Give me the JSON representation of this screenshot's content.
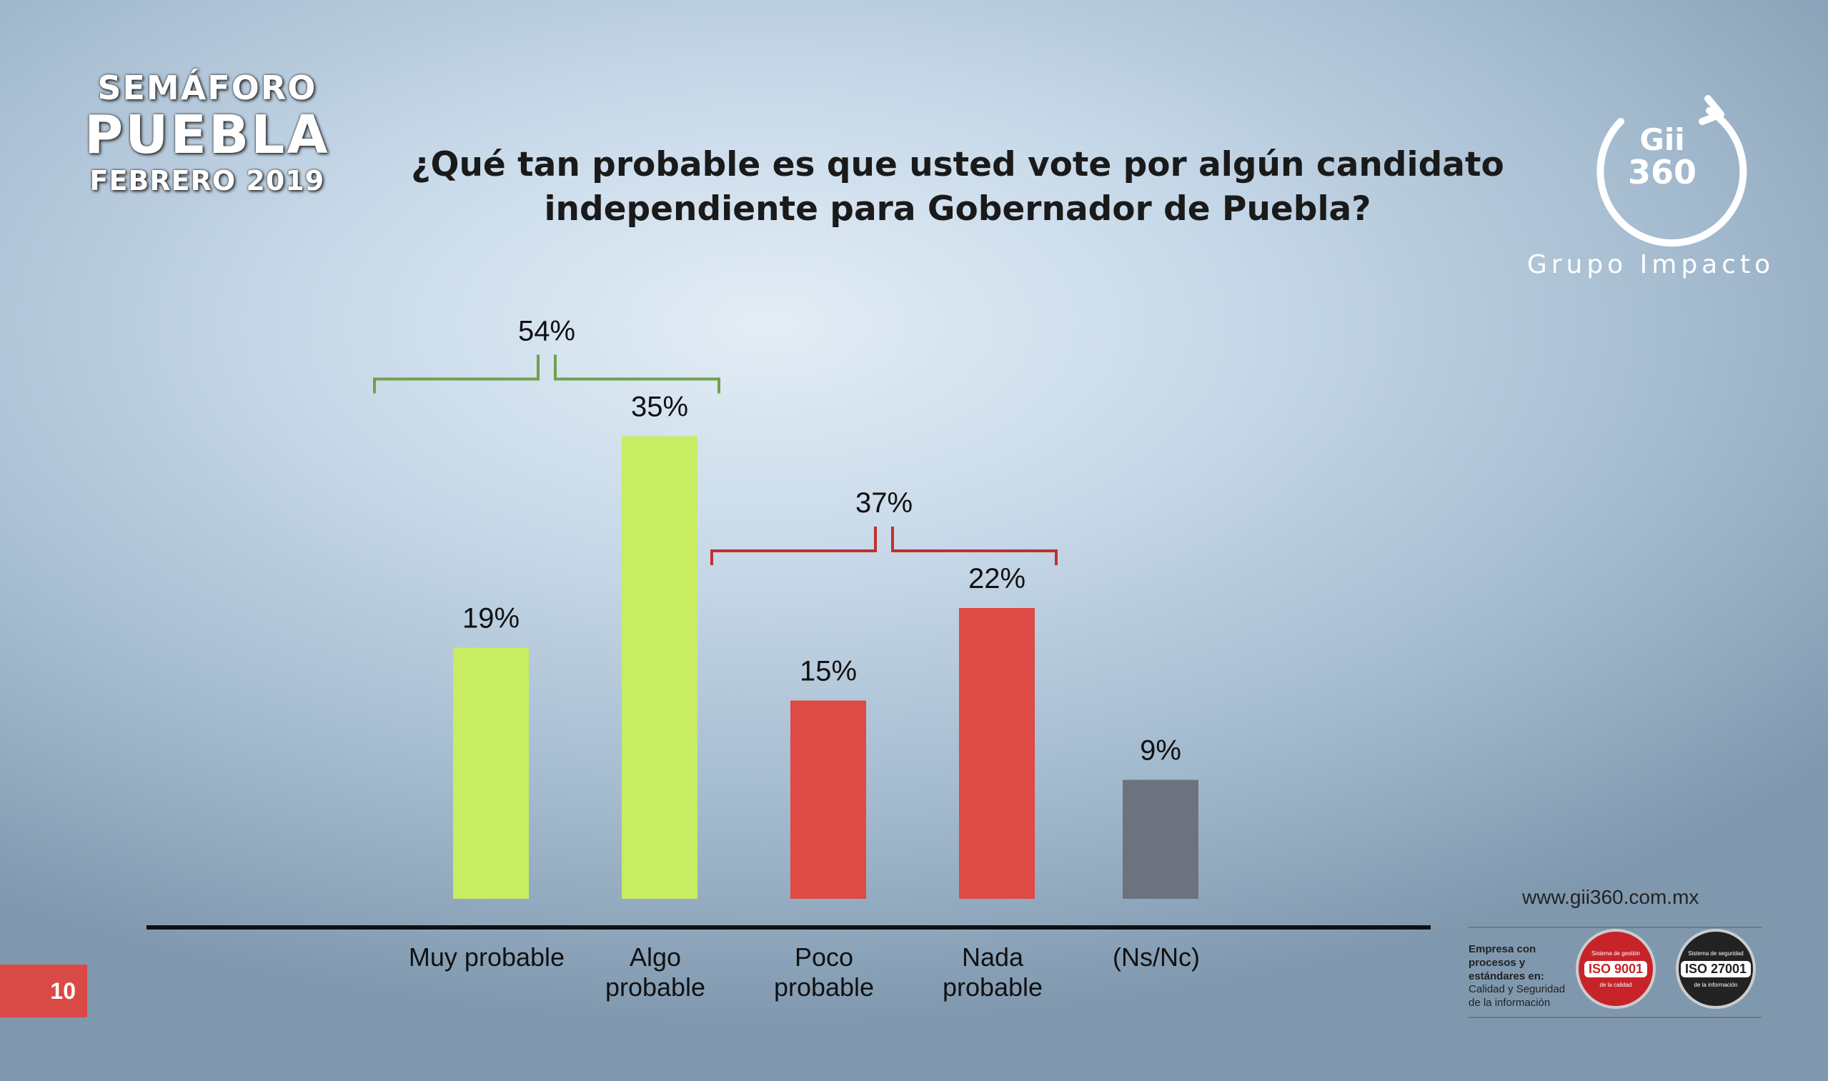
{
  "brand": {
    "line1": "SEMÁFORO",
    "line2": "PUEBLA",
    "line3": "FEBRERO 2019"
  },
  "logo": {
    "mark_top": "Gii",
    "mark_bottom": "360",
    "tagline": "Grupo Impacto"
  },
  "page_number": "10",
  "footer": {
    "url": "www.gii360.com.mx",
    "cert_bold": "Empresa con procesos y estándares en:",
    "cert_normal": "Calidad y Seguridad de la información",
    "iso1": {
      "badge": "ISO 9001",
      "ring_top": "Sistema de gestión",
      "ring_bottom": "de la calidad"
    },
    "iso2": {
      "badge": "ISO 27001",
      "ring_top": "Sistema de seguridad",
      "ring_bottom": "de la información"
    }
  },
  "colors": {
    "green": "#c8ec62",
    "red": "#de4a44",
    "gray": "#6c737e",
    "green_bracket": "#6fa14a",
    "red_bracket": "#c2302c"
  },
  "chart_data": {
    "type": "bar",
    "title": "¿Qué tan probable es que usted vote por algún candidato independiente para Gobernador de Puebla?",
    "categories": [
      [
        "Muy probable"
      ],
      [
        "Algo",
        "probable"
      ],
      [
        "Poco",
        "probable"
      ],
      [
        "Nada",
        "probable"
      ],
      [
        "(Ns/Nc)"
      ]
    ],
    "values": [
      19,
      35,
      15,
      22,
      9
    ],
    "value_labels": [
      "19%",
      "35%",
      "15%",
      "22%",
      "9%"
    ],
    "bar_colors": [
      "green",
      "green",
      "red",
      "red",
      "gray"
    ],
    "groups": [
      {
        "label": "54%",
        "value": 54,
        "bars": [
          0,
          1
        ],
        "color": "green_bracket"
      },
      {
        "label": "37%",
        "value": 37,
        "bars": [
          2,
          3
        ],
        "color": "red_bracket"
      }
    ],
    "unit": "%",
    "xlabel": "",
    "ylabel": "",
    "ylim": [
      0,
      35
    ]
  }
}
